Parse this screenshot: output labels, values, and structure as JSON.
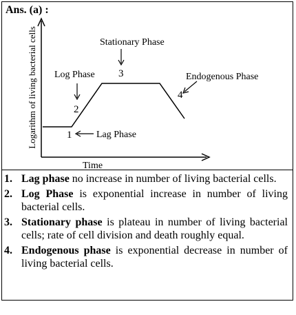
{
  "header": {
    "answer_label": "Ans. (a) :"
  },
  "diagram": {
    "y_axis_label": "Logarithm of living bacterial cells",
    "x_axis_label": "Time",
    "phase_labels": {
      "lag": "Lag Phase",
      "log": "Log Phase",
      "stationary": "Stationary Phase",
      "endogenous": "Endogenous Phase"
    },
    "markers": [
      "1",
      "2",
      "3",
      "4"
    ]
  },
  "items": [
    {
      "number": "1.",
      "term": "Lag phase",
      "text": " no increase in number of living bacterial cells."
    },
    {
      "number": "2.",
      "term": "Log Phase",
      "text": " is exponential increase in number of living bacterial cells."
    },
    {
      "number": "3.",
      "term": "Stationary phase",
      "text": " is plateau in number of living bacterial cells; rate of cell division and death roughly equal."
    },
    {
      "number": "4.",
      "term": "Endogenous phase",
      "text": " is exponential decrease in number of living bacterial cells."
    }
  ]
}
